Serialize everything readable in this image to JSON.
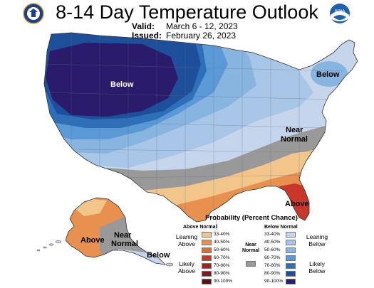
{
  "header": {
    "title": "8-14 Day Temperature Outlook",
    "valid_label": "Valid:",
    "valid_value": "March 6 - 12, 2023",
    "issued_label": "Issued:",
    "issued_value": "February 26, 2023",
    "noaa_text": "NOAA"
  },
  "map_labels": {
    "west_below": "Below",
    "northeast_below": "Below",
    "southeast_near_normal_1": "Near",
    "southeast_near_normal_2": "Normal",
    "florida_above": "Above",
    "alaska_above": "Above",
    "alaska_near_normal_1": "Near",
    "alaska_near_normal_2": "Normal",
    "aleutians_below": "Below"
  },
  "legend": {
    "title": "Probability (Percent Chance)",
    "above_header": "Above Normal",
    "below_header": "Below Normal",
    "near_header_1": "Near",
    "near_header_2": "Normal",
    "leaning_above_1": "Leaning",
    "leaning_above_2": "Above",
    "likely_above_1": "Likely",
    "likely_above_2": "Above",
    "leaning_below_1": "Leaning",
    "leaning_below_2": "Below",
    "likely_below_1": "Likely",
    "likely_below_2": "Below",
    "ranges": [
      "33-40%",
      "40-50%",
      "50-60%",
      "60-70%",
      "70-80%",
      "80-90%",
      "90-100%"
    ],
    "above_colors": [
      "#f2c58a",
      "#e8914f",
      "#de6a3a",
      "#c9372b",
      "#a3221f",
      "#7e1a1a",
      "#5a1010"
    ],
    "below_colors": [
      "#c5d5ec",
      "#a8c6e7",
      "#88b4e0",
      "#5b98d6",
      "#2d6fb9",
      "#1e4f9a",
      "#2a1c6b"
    ],
    "near_color": "#999999"
  }
}
